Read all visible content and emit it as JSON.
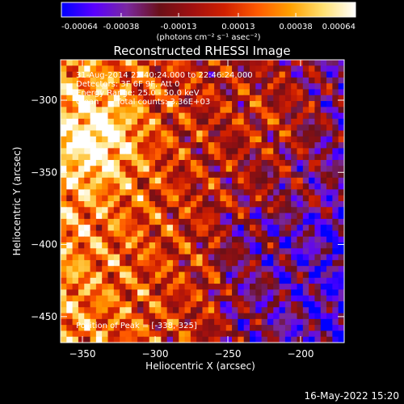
{
  "chart_data": {
    "type": "heatmap",
    "title": "Reconstructed RHESSI Image",
    "xlabel": "Heliocentric X (arcsec)",
    "ylabel": "Heliocentric Y (arcsec)",
    "xlim": [
      -365,
      -170
    ],
    "ylim": [
      -468,
      -272
    ],
    "x_ticks": [
      -350,
      -300,
      -250,
      -200
    ],
    "y_ticks": [
      -300,
      -350,
      -400,
      -450
    ],
    "colorbar": {
      "min": -0.00064,
      "max": 0.00064,
      "ticks": [
        "-0.00064",
        "-0.00038",
        "-0.00013",
        "0.00013",
        "0.00038",
        "0.00064"
      ],
      "unit_label": "(photons cm⁻² s⁻¹ asec⁻²)",
      "stops": [
        "#0000ff",
        "#5a00ff",
        "#7a28a0",
        "#6a1018",
        "#a01010",
        "#d02000",
        "#ff5a00",
        "#ffa000",
        "#ffe070",
        "#ffffff"
      ]
    },
    "peak": [
      -338,
      -325
    ],
    "annotations": {
      "time": "31-Aug-2014 22:40:24.000 to 22:46:24.000",
      "detectors": "Detectors: 3F 6F 9F, Att 0",
      "energy": "Energy Range: 25.0 - 50.0 keV",
      "clean_label": "Clean",
      "counts": "Total counts: 3.36E+03",
      "peak_text": "Position of Peak = [-338,-325]"
    }
  },
  "footer": {
    "date": "16-May-2022 15:20"
  }
}
